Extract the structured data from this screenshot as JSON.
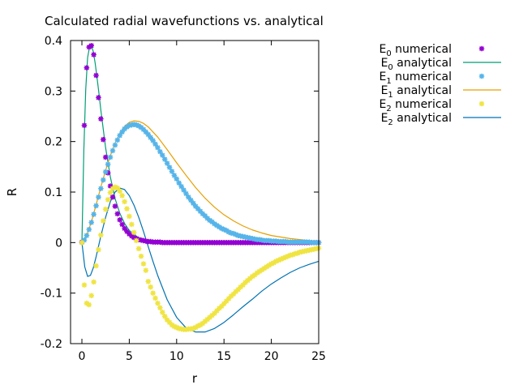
{
  "chart_data": {
    "type": "line",
    "title": "Calculated radial wavefunctions vs. analytical",
    "xlabel": "r",
    "ylabel": "R",
    "xlim": [
      -1.2,
      25
    ],
    "ylim": [
      -0.2,
      0.4
    ],
    "xticks": [
      "0",
      "5",
      "10",
      "15",
      "20",
      "25"
    ],
    "yticks": [
      "-0.2",
      "-0.1",
      "0",
      "0.1",
      "0.2",
      "0.3",
      "0.4"
    ],
    "grid": false,
    "legend_position": "outside-right-top",
    "legend": [
      {
        "base": "E",
        "sub": "0",
        "rest": " numerical",
        "style": "points",
        "color": "#9400d3"
      },
      {
        "base": "E",
        "sub": "0",
        "rest": " analytical",
        "style": "line",
        "color": "#009e73"
      },
      {
        "base": "E",
        "sub": "1",
        "rest": " numerical",
        "style": "points",
        "color": "#56b4e9"
      },
      {
        "base": "E",
        "sub": "1",
        "rest": " analytical",
        "style": "line",
        "color": "#e69f00"
      },
      {
        "base": "E",
        "sub": "2",
        "rest": " numerical",
        "style": "points",
        "color": "#f0e442"
      },
      {
        "base": "E",
        "sub": "2",
        "rest": " analytical",
        "style": "line",
        "color": "#0072b2"
      }
    ],
    "series": [
      {
        "name": "E0 numerical",
        "style": "points",
        "color": "#9400d3",
        "x": [
          0,
          0.25,
          0.5,
          0.75,
          1.0,
          1.25,
          1.5,
          1.75,
          2.0,
          2.25,
          2.5,
          2.75,
          3.0,
          3.25,
          3.5,
          3.75,
          4.0,
          4.25,
          4.5,
          4.75,
          5.0,
          5.25,
          5.5,
          5.75,
          6.0,
          6.25,
          6.5,
          6.75,
          7.0,
          7.25,
          7.5,
          7.75,
          8.0,
          8.25,
          8.5,
          8.75,
          9.0,
          9.25,
          9.5,
          9.75,
          10.0,
          10.25,
          10.5,
          10.75,
          11.0,
          11.25,
          11.5,
          11.75,
          12.0,
          12.25,
          12.5,
          12.75,
          13.0,
          13.25,
          13.5,
          13.75,
          14.0,
          14.25,
          14.5,
          14.75,
          15.0,
          15.25,
          15.5,
          15.75,
          16.0,
          16.25,
          16.5,
          16.75,
          17.0,
          17.25,
          17.5,
          17.75,
          18.0,
          18.25,
          18.5,
          18.75,
          19.0,
          19.25,
          19.5,
          19.75,
          20.0,
          20.25,
          20.5,
          20.75,
          21.0,
          21.25,
          21.5,
          21.75,
          22.0,
          22.25,
          22.5,
          22.75,
          23.0,
          23.25,
          23.5,
          23.75,
          24.0,
          24.25,
          24.5,
          24.75,
          25.0
        ],
        "y": [
          0.001,
          0.232,
          0.346,
          0.387,
          0.39,
          0.372,
          0.331,
          0.287,
          0.245,
          0.204,
          0.169,
          0.138,
          0.112,
          0.09,
          0.072,
          0.057,
          0.045,
          0.036,
          0.028,
          0.022,
          0.017,
          0.013,
          0.01,
          0.008,
          0.006,
          0.005,
          0.004,
          0.003,
          0.002,
          0.002,
          0.001,
          0.001,
          0.001,
          0.001,
          0.0,
          0.0,
          0.0,
          0.0,
          0.0,
          0.0,
          0.0,
          0.0,
          0.0,
          0.0,
          0.0,
          0.0,
          0.0,
          0.0,
          0.0,
          0.0,
          0.0,
          0.0,
          0.0,
          0.0,
          0.0,
          0.0,
          0.0,
          0.0,
          0.0,
          0.0,
          0.0,
          0.0,
          0.0,
          0.0,
          0.0,
          0.0,
          0.0,
          0.0,
          0.0,
          0.0,
          0.0,
          0.0,
          0.0,
          0.0,
          0.0,
          0.0,
          0.0,
          0.0,
          0.0,
          0.0,
          0.0,
          0.0,
          0.0,
          0.0,
          0.0,
          0.0,
          0.0,
          0.0,
          0.0,
          0.0,
          0.0,
          0.0,
          0.0,
          0.0,
          0.0,
          0.0,
          0.0,
          0.0,
          0.0,
          0.0,
          0.0
        ]
      },
      {
        "name": "E0 analytical",
        "style": "line",
        "color": "#009e73",
        "x": [
          0,
          0.2,
          0.4,
          0.6,
          0.8,
          1.0,
          1.2,
          1.4,
          1.6,
          1.8,
          2.0,
          2.5,
          3.0,
          3.5,
          4.0,
          4.5,
          5.0,
          6.0,
          7.0,
          8.0,
          9.0,
          10.0,
          12.0,
          15.0,
          20.0,
          25.0
        ],
        "y": [
          0,
          0.181,
          0.302,
          0.366,
          0.387,
          0.39,
          0.378,
          0.355,
          0.326,
          0.295,
          0.262,
          0.188,
          0.13,
          0.087,
          0.058,
          0.038,
          0.024,
          0.009,
          0.004,
          0.001,
          0.0,
          0.0,
          0.0,
          0.0,
          0.0,
          0.0
        ]
      },
      {
        "name": "E1 numerical",
        "style": "points",
        "color": "#56b4e9",
        "x": [
          0,
          0.25,
          0.5,
          0.75,
          1.0,
          1.25,
          1.5,
          1.75,
          2.0,
          2.25,
          2.5,
          2.75,
          3.0,
          3.25,
          3.5,
          3.75,
          4.0,
          4.25,
          4.5,
          4.75,
          5.0,
          5.25,
          5.5,
          5.75,
          6.0,
          6.25,
          6.5,
          6.75,
          7.0,
          7.25,
          7.5,
          7.75,
          8.0,
          8.25,
          8.5,
          8.75,
          9.0,
          9.25,
          9.5,
          9.75,
          10.0,
          10.25,
          10.5,
          10.75,
          11.0,
          11.25,
          11.5,
          11.75,
          12.0,
          12.25,
          12.5,
          12.75,
          13.0,
          13.25,
          13.5,
          13.75,
          14.0,
          14.25,
          14.5,
          14.75,
          15.0,
          15.25,
          15.5,
          15.75,
          16.0,
          16.25,
          16.5,
          16.75,
          17.0,
          17.25,
          17.5,
          17.75,
          18.0,
          18.25,
          18.5,
          18.75,
          19.0,
          19.25,
          19.5,
          19.75,
          20.0,
          20.25,
          20.5,
          20.75,
          21.0,
          21.25,
          21.5,
          21.75,
          22.0,
          22.25,
          22.5,
          22.75,
          23.0,
          23.25,
          23.5,
          23.75,
          24.0,
          24.25,
          24.5,
          24.75,
          25.0
        ],
        "y": [
          0.0,
          0.005,
          0.014,
          0.026,
          0.04,
          0.056,
          0.073,
          0.09,
          0.107,
          0.124,
          0.14,
          0.155,
          0.169,
          0.182,
          0.193,
          0.203,
          0.212,
          0.219,
          0.225,
          0.229,
          0.232,
          0.233,
          0.234,
          0.233,
          0.231,
          0.228,
          0.224,
          0.219,
          0.214,
          0.208,
          0.202,
          0.195,
          0.188,
          0.18,
          0.173,
          0.165,
          0.157,
          0.149,
          0.141,
          0.133,
          0.126,
          0.118,
          0.111,
          0.104,
          0.097,
          0.09,
          0.084,
          0.078,
          0.072,
          0.067,
          0.062,
          0.057,
          0.053,
          0.048,
          0.044,
          0.041,
          0.037,
          0.034,
          0.031,
          0.028,
          0.026,
          0.024,
          0.021,
          0.019,
          0.018,
          0.016,
          0.014,
          0.013,
          0.012,
          0.011,
          0.01,
          0.009,
          0.008,
          0.007,
          0.006,
          0.006,
          0.005,
          0.004,
          0.004,
          0.004,
          0.003,
          0.003,
          0.003,
          0.002,
          0.002,
          0.002,
          0.002,
          0.001,
          0.001,
          0.001,
          0.001,
          0.001,
          0.001,
          0.001,
          0.001,
          0.001,
          0.001,
          0.0,
          0.0,
          0.0,
          0.0
        ]
      },
      {
        "name": "E1 analytical",
        "style": "line",
        "color": "#e69f00",
        "x": [
          0,
          0.5,
          1.0,
          1.5,
          2.0,
          2.5,
          3.0,
          3.5,
          4.0,
          4.5,
          5.0,
          5.5,
          6.0,
          6.5,
          7.0,
          8.0,
          9.0,
          10.0,
          11.0,
          12.0,
          13.0,
          14.0,
          15.0,
          16.0,
          17.0,
          18.0,
          19.0,
          20.0,
          21.0,
          22.0,
          23.0,
          24.0,
          25.0
        ],
        "y": [
          0.0,
          0.014,
          0.041,
          0.075,
          0.11,
          0.143,
          0.172,
          0.197,
          0.216,
          0.23,
          0.238,
          0.241,
          0.24,
          0.236,
          0.229,
          0.209,
          0.184,
          0.158,
          0.133,
          0.109,
          0.088,
          0.07,
          0.055,
          0.043,
          0.033,
          0.025,
          0.019,
          0.014,
          0.011,
          0.008,
          0.006,
          0.004,
          0.003
        ]
      },
      {
        "name": "E2 numerical",
        "style": "points",
        "color": "#f0e442",
        "x": [
          0,
          0.25,
          0.5,
          0.75,
          1.0,
          1.25,
          1.5,
          1.75,
          2.0,
          2.25,
          2.5,
          2.75,
          3.0,
          3.25,
          3.5,
          3.75,
          4.0,
          4.25,
          4.5,
          4.75,
          5.0,
          5.25,
          5.5,
          5.75,
          6.0,
          6.25,
          6.5,
          6.75,
          7.0,
          7.25,
          7.5,
          7.75,
          8.0,
          8.25,
          8.5,
          8.75,
          9.0,
          9.25,
          9.5,
          9.75,
          10.0,
          10.25,
          10.5,
          10.75,
          11.0,
          11.25,
          11.5,
          11.75,
          12.0,
          12.25,
          12.5,
          12.75,
          13.0,
          13.25,
          13.5,
          13.75,
          14.0,
          14.25,
          14.5,
          14.75,
          15.0,
          15.25,
          15.5,
          15.75,
          16.0,
          16.25,
          16.5,
          16.75,
          17.0,
          17.25,
          17.5,
          17.75,
          18.0,
          18.25,
          18.5,
          18.75,
          19.0,
          19.25,
          19.5,
          19.75,
          20.0,
          20.25,
          20.5,
          20.75,
          21.0,
          21.25,
          21.5,
          21.75,
          22.0,
          22.25,
          22.5,
          22.75,
          23.0,
          23.25,
          23.5,
          23.75,
          24.0,
          24.25,
          24.5,
          24.75,
          25.0
        ],
        "y": [
          0.0,
          -0.084,
          -0.12,
          -0.123,
          -0.105,
          -0.078,
          -0.046,
          -0.014,
          0.015,
          0.043,
          0.066,
          0.085,
          0.099,
          0.107,
          0.11,
          0.108,
          0.102,
          0.093,
          0.081,
          0.067,
          0.052,
          0.036,
          0.02,
          0.004,
          -0.012,
          -0.027,
          -0.042,
          -0.055,
          -0.077,
          -0.088,
          -0.1,
          -0.11,
          -0.12,
          -0.129,
          -0.138,
          -0.146,
          -0.153,
          -0.158,
          -0.163,
          -0.166,
          -0.168,
          -0.17,
          -0.171,
          -0.172,
          -0.172,
          -0.171,
          -0.171,
          -0.17,
          -0.168,
          -0.165,
          -0.163,
          -0.16,
          -0.156,
          -0.152,
          -0.148,
          -0.144,
          -0.14,
          -0.135,
          -0.13,
          -0.126,
          -0.121,
          -0.116,
          -0.111,
          -0.106,
          -0.102,
          -0.097,
          -0.093,
          -0.088,
          -0.084,
          -0.079,
          -0.075,
          -0.071,
          -0.067,
          -0.064,
          -0.06,
          -0.057,
          -0.054,
          -0.051,
          -0.048,
          -0.045,
          -0.042,
          -0.04,
          -0.037,
          -0.035,
          -0.033,
          -0.031,
          -0.029,
          -0.027,
          -0.025,
          -0.024,
          -0.022,
          -0.021,
          -0.019,
          -0.018,
          -0.017,
          -0.016,
          -0.015,
          -0.014,
          -0.013,
          -0.012,
          -0.011
        ]
      },
      {
        "name": "E2 analytical",
        "style": "line",
        "color": "#0072b2",
        "x": [
          0,
          0.3,
          0.6,
          0.9,
          1.2,
          1.5,
          2.0,
          2.5,
          3.0,
          3.5,
          4.0,
          4.5,
          5.0,
          5.5,
          6.0,
          6.5,
          7.0,
          7.5,
          8.0,
          9.0,
          10.0,
          11.0,
          12.0,
          13.0,
          14.0,
          15.0,
          16.0,
          17.0,
          18.0,
          19.0,
          20.0,
          21.0,
          22.0,
          23.0,
          24.0,
          25.0
        ],
        "y": [
          0.0,
          -0.048,
          -0.067,
          -0.065,
          -0.05,
          -0.028,
          0.013,
          0.05,
          0.081,
          0.1,
          0.108,
          0.105,
          0.093,
          0.074,
          0.05,
          0.022,
          -0.008,
          -0.037,
          -0.065,
          -0.113,
          -0.148,
          -0.169,
          -0.177,
          -0.177,
          -0.17,
          -0.158,
          -0.143,
          -0.127,
          -0.112,
          -0.096,
          -0.082,
          -0.07,
          -0.059,
          -0.05,
          -0.043,
          -0.037
        ]
      }
    ]
  }
}
